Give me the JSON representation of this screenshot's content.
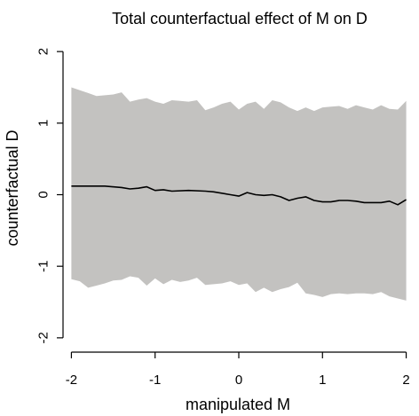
{
  "chart_data": {
    "type": "line",
    "title": "Total counterfactual effect of M on D",
    "xlabel": "manipulated M",
    "ylabel": "counterfactual D",
    "xlim": [
      -2.1,
      2.1
    ],
    "ylim": [
      -2.2,
      2.2
    ],
    "xticks": [
      -2,
      -1,
      0,
      1,
      2
    ],
    "xtick_labels": [
      "-2",
      "-1",
      "0",
      "1",
      "2"
    ],
    "yticks": [
      -2,
      -1,
      0,
      1,
      2
    ],
    "ytick_labels": [
      "-2",
      "-1",
      "0",
      "1",
      "2"
    ],
    "grid": false,
    "series": [
      {
        "role": "mean-line",
        "color": "#000000",
        "points": [
          [
            -2.0,
            0.12
          ],
          [
            -1.8,
            0.12
          ],
          [
            -1.6,
            0.12
          ],
          [
            -1.4,
            0.1
          ],
          [
            -1.3,
            0.08
          ],
          [
            -1.2,
            0.09
          ],
          [
            -1.1,
            0.11
          ],
          [
            -1.0,
            0.06
          ],
          [
            -0.9,
            0.07
          ],
          [
            -0.8,
            0.05
          ],
          [
            -0.6,
            0.06
          ],
          [
            -0.4,
            0.05
          ],
          [
            -0.3,
            0.04
          ],
          [
            -0.1,
            0.0
          ],
          [
            0.0,
            -0.02
          ],
          [
            0.1,
            0.03
          ],
          [
            0.2,
            0.0
          ],
          [
            0.3,
            -0.01
          ],
          [
            0.4,
            0.0
          ],
          [
            0.5,
            -0.03
          ],
          [
            0.6,
            -0.08
          ],
          [
            0.7,
            -0.05
          ],
          [
            0.8,
            -0.03
          ],
          [
            0.9,
            -0.08
          ],
          [
            1.0,
            -0.1
          ],
          [
            1.1,
            -0.1
          ],
          [
            1.2,
            -0.08
          ],
          [
            1.3,
            -0.08
          ],
          [
            1.4,
            -0.09
          ],
          [
            1.5,
            -0.11
          ],
          [
            1.6,
            -0.11
          ],
          [
            1.7,
            -0.11
          ],
          [
            1.8,
            -0.09
          ],
          [
            1.9,
            -0.14
          ],
          [
            2.0,
            -0.07
          ]
        ]
      }
    ],
    "band": {
      "role": "prediction-interval",
      "color": "#c3c2c0",
      "upper": [
        [
          -2.0,
          1.5
        ],
        [
          -1.8,
          1.42
        ],
        [
          -1.7,
          1.38
        ],
        [
          -1.5,
          1.4
        ],
        [
          -1.4,
          1.43
        ],
        [
          -1.3,
          1.3
        ],
        [
          -1.2,
          1.33
        ],
        [
          -1.1,
          1.35
        ],
        [
          -1.0,
          1.3
        ],
        [
          -0.9,
          1.27
        ],
        [
          -0.8,
          1.32
        ],
        [
          -0.7,
          1.31
        ],
        [
          -0.6,
          1.3
        ],
        [
          -0.5,
          1.32
        ],
        [
          -0.4,
          1.18
        ],
        [
          -0.3,
          1.22
        ],
        [
          -0.2,
          1.27
        ],
        [
          -0.1,
          1.3
        ],
        [
          0.0,
          1.19
        ],
        [
          0.1,
          1.27
        ],
        [
          0.2,
          1.3
        ],
        [
          0.3,
          1.2
        ],
        [
          0.4,
          1.32
        ],
        [
          0.5,
          1.29
        ],
        [
          0.6,
          1.22
        ],
        [
          0.7,
          1.17
        ],
        [
          0.8,
          1.22
        ],
        [
          0.9,
          1.17
        ],
        [
          1.0,
          1.22
        ],
        [
          1.1,
          1.23
        ],
        [
          1.2,
          1.24
        ],
        [
          1.3,
          1.2
        ],
        [
          1.4,
          1.25
        ],
        [
          1.5,
          1.22
        ],
        [
          1.6,
          1.19
        ],
        [
          1.7,
          1.25
        ],
        [
          1.8,
          1.2
        ],
        [
          1.9,
          1.19
        ],
        [
          2.0,
          1.31
        ]
      ],
      "lower": [
        [
          -2.0,
          -1.18
        ],
        [
          -1.9,
          -1.21
        ],
        [
          -1.8,
          -1.3
        ],
        [
          -1.7,
          -1.27
        ],
        [
          -1.6,
          -1.24
        ],
        [
          -1.5,
          -1.2
        ],
        [
          -1.4,
          -1.19
        ],
        [
          -1.3,
          -1.14
        ],
        [
          -1.2,
          -1.16
        ],
        [
          -1.1,
          -1.27
        ],
        [
          -1.0,
          -1.17
        ],
        [
          -0.9,
          -1.25
        ],
        [
          -0.8,
          -1.19
        ],
        [
          -0.7,
          -1.22
        ],
        [
          -0.6,
          -1.2
        ],
        [
          -0.5,
          -1.16
        ],
        [
          -0.4,
          -1.26
        ],
        [
          -0.3,
          -1.25
        ],
        [
          -0.2,
          -1.24
        ],
        [
          -0.1,
          -1.21
        ],
        [
          0.0,
          -1.26
        ],
        [
          0.1,
          -1.24
        ],
        [
          0.2,
          -1.36
        ],
        [
          0.3,
          -1.3
        ],
        [
          0.4,
          -1.36
        ],
        [
          0.5,
          -1.32
        ],
        [
          0.6,
          -1.29
        ],
        [
          0.7,
          -1.23
        ],
        [
          0.8,
          -1.38
        ],
        [
          0.9,
          -1.4
        ],
        [
          1.0,
          -1.43
        ],
        [
          1.1,
          -1.39
        ],
        [
          1.2,
          -1.38
        ],
        [
          1.3,
          -1.39
        ],
        [
          1.4,
          -1.38
        ],
        [
          1.5,
          -1.38
        ],
        [
          1.6,
          -1.39
        ],
        [
          1.7,
          -1.36
        ],
        [
          1.8,
          -1.42
        ],
        [
          1.9,
          -1.45
        ],
        [
          2.0,
          -1.48
        ]
      ]
    }
  }
}
